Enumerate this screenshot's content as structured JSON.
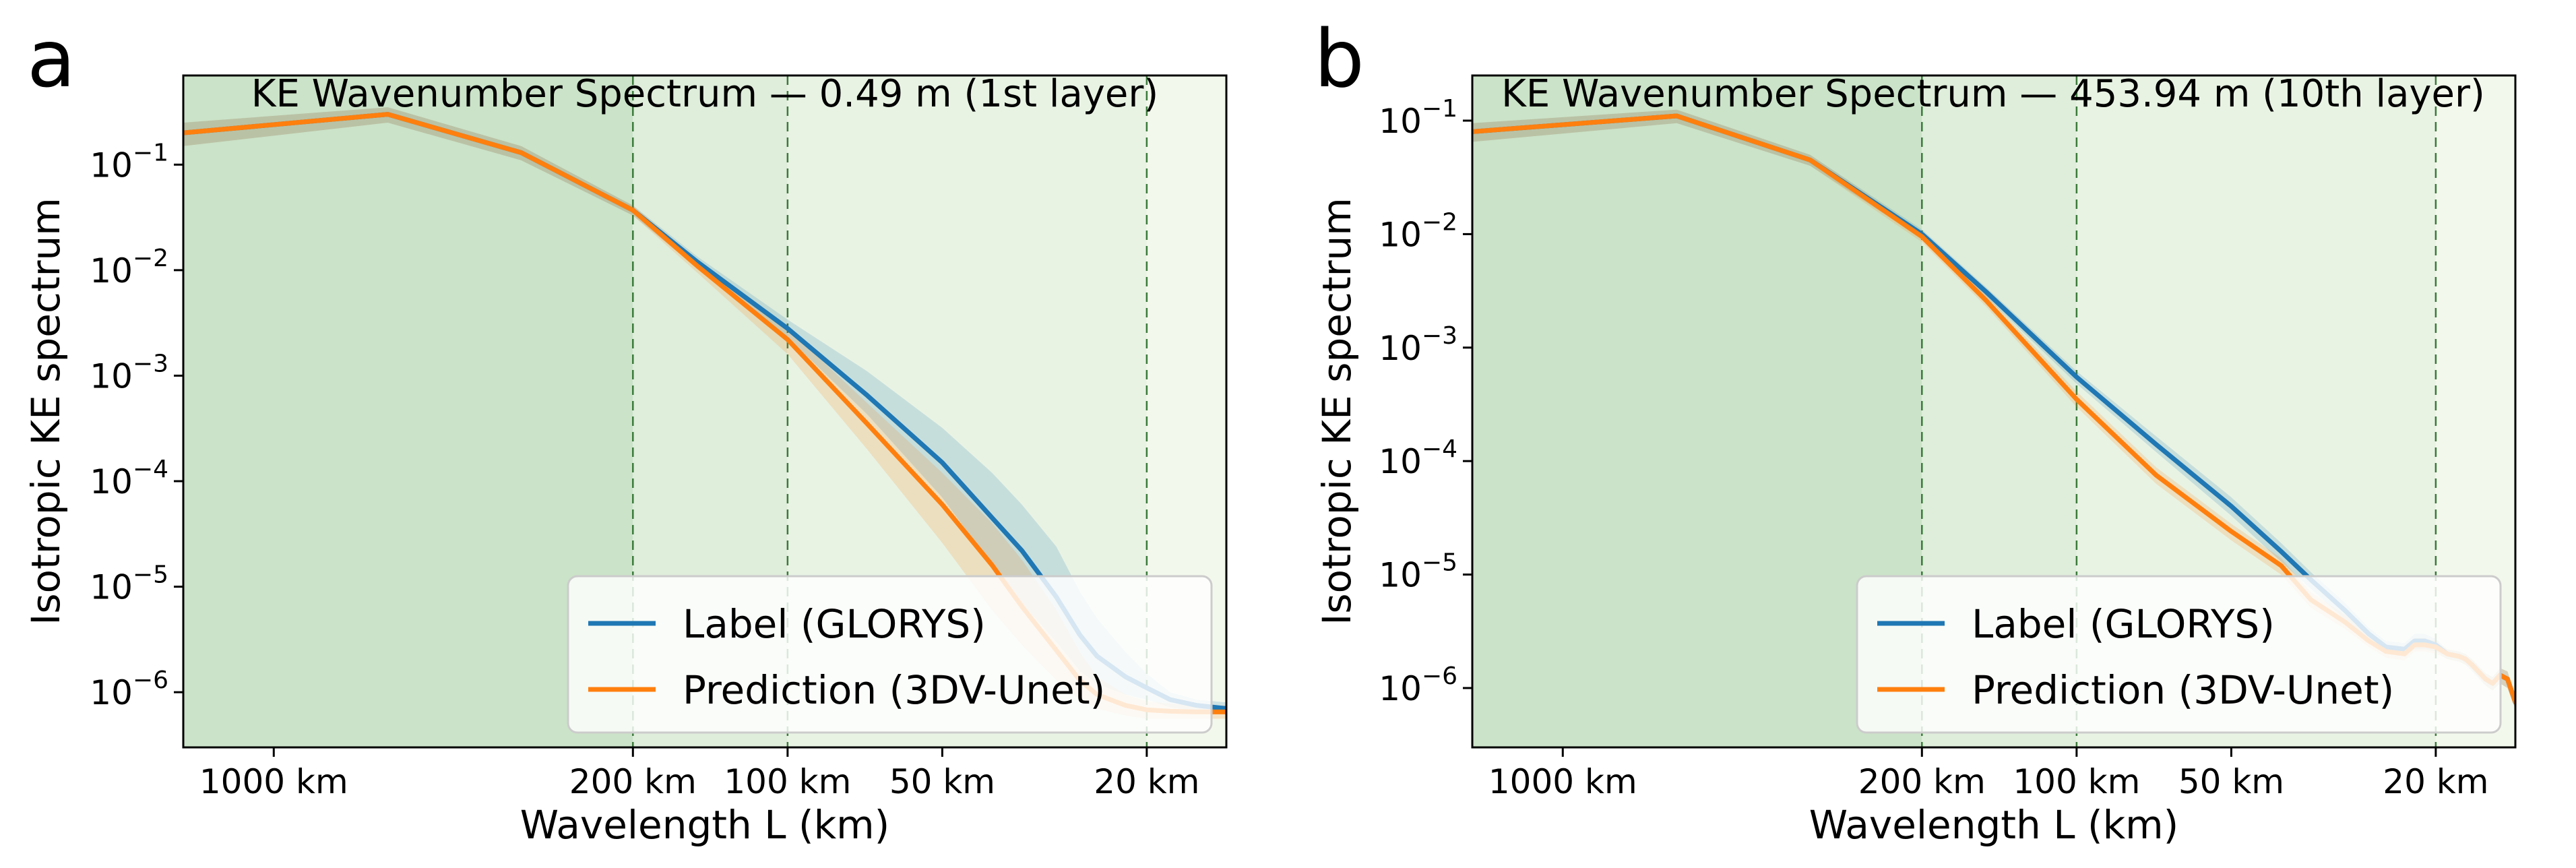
{
  "chart_data": [
    {
      "type": "line",
      "panel_label": "a",
      "title": "KE Wavenumber Spectrum — 0.49 m (1st layer)",
      "xlabel": "Wavelength L (km)",
      "ylabel": "Isotropic KE spectrum",
      "xscale": "log",
      "yscale": "log",
      "xlim": [
        1500,
        14
      ],
      "ylim": [
        3e-07,
        0.7
      ],
      "xticks": [
        {
          "value": 20,
          "label": "20 km"
        },
        {
          "value": 50,
          "label": "50 km"
        },
        {
          "value": 100,
          "label": "100 km"
        },
        {
          "value": 200,
          "label": "200 km"
        },
        {
          "value": 1000,
          "label": "1000 km"
        }
      ],
      "yticks": [
        {
          "value": 1e-06,
          "base": "10",
          "exp": "−6"
        },
        {
          "value": 1e-05,
          "base": "10",
          "exp": "−5"
        },
        {
          "value": 0.0001,
          "base": "10",
          "exp": "−4"
        },
        {
          "value": 0.001,
          "base": "10",
          "exp": "−3"
        },
        {
          "value": 0.01,
          "base": "10",
          "exp": "−2"
        },
        {
          "value": 0.1,
          "base": "10",
          "exp": "−1"
        }
      ],
      "shaded_regions": [
        {
          "from": 14,
          "to": 20,
          "color": "#f3f8ec"
        },
        {
          "from": 20,
          "to": 100,
          "color": "#e9f3e4"
        },
        {
          "from": 100,
          "to": 200,
          "color": "#dfeddb"
        },
        {
          "from": 200,
          "to": 1500,
          "color": "#cbe3c8"
        }
      ],
      "vlines": [
        20,
        100,
        200
      ],
      "legend": {
        "location": "lower-right",
        "entries": [
          "Label (GLORYS)",
          "Prediction (3DV-Unet)"
        ]
      },
      "series": [
        {
          "name": "Label (GLORYS)",
          "color": "#1f77b4",
          "x": [
            1500,
            600,
            330,
            200,
            150,
            100,
            70,
            50,
            40,
            35,
            30,
            27,
            25,
            22,
            20,
            18,
            16,
            14
          ],
          "y": [
            0.2,
            0.3,
            0.13,
            0.037,
            0.012,
            0.0028,
            0.00065,
            0.00015,
            4.5e-05,
            2.2e-05,
            8e-06,
            3.5e-06,
            2.2e-06,
            1.4e-06,
            1.1e-06,
            8.5e-07,
            7.5e-07,
            7e-07
          ],
          "band_lower": [
            0.15,
            0.25,
            0.11,
            0.033,
            0.0105,
            0.0023,
            0.00043,
            7e-05,
            1.6e-05,
            7e-06,
            3e-06,
            1.6e-06,
            1.2e-06,
            9.5e-07,
            8.5e-07,
            7.2e-07,
            6.6e-07,
            6.2e-07
          ],
          "band_upper": [
            0.25,
            0.35,
            0.15,
            0.041,
            0.0135,
            0.0034,
            0.0011,
            0.00032,
            0.00012,
            6e-05,
            2.4e-05,
            9e-06,
            5e-06,
            2.4e-06,
            1.5e-06,
            1e-06,
            8.5e-07,
            8e-07
          ]
        },
        {
          "name": "Prediction (3DV-Unet)",
          "color": "#ff7f0e",
          "x": [
            1500,
            600,
            330,
            200,
            150,
            100,
            70,
            50,
            40,
            35,
            30,
            27,
            25,
            22,
            20,
            18,
            16,
            14
          ],
          "y": [
            0.2,
            0.3,
            0.13,
            0.037,
            0.011,
            0.0022,
            0.00035,
            6e-05,
            1.6e-05,
            6.5e-06,
            2.5e-06,
            1.3e-06,
            9.5e-07,
            7.5e-07,
            6.8e-07,
            6.6e-07,
            6.5e-07,
            6.5e-07
          ],
          "band_lower": [
            0.15,
            0.25,
            0.11,
            0.033,
            0.0095,
            0.0016,
            0.0002,
            2.6e-05,
            6e-06,
            2.8e-06,
            1.3e-06,
            8.5e-07,
            7e-07,
            6e-07,
            5.6e-07,
            5.6e-07,
            5.6e-07,
            5.6e-07
          ],
          "band_upper": [
            0.25,
            0.35,
            0.15,
            0.041,
            0.0125,
            0.0028,
            0.00055,
            0.00012,
            4e-05,
            1.8e-05,
            6e-06,
            2.4e-06,
            1.4e-06,
            9.5e-07,
            8.2e-07,
            7.8e-07,
            7.5e-07,
            7.5e-07
          ]
        }
      ]
    },
    {
      "type": "line",
      "panel_label": "b",
      "title": "KE Wavenumber Spectrum — 453.94 m (10th layer)",
      "xlabel": "Wavelength L (km)",
      "ylabel": "Isotropic KE spectrum",
      "xscale": "log",
      "yscale": "log",
      "xlim": [
        1500,
        14
      ],
      "ylim": [
        3e-07,
        0.25
      ],
      "xticks": [
        {
          "value": 20,
          "label": "20 km"
        },
        {
          "value": 50,
          "label": "50 km"
        },
        {
          "value": 100,
          "label": "100 km"
        },
        {
          "value": 200,
          "label": "200 km"
        },
        {
          "value": 1000,
          "label": "1000 km"
        }
      ],
      "yticks": [
        {
          "value": 1e-06,
          "base": "10",
          "exp": "−6"
        },
        {
          "value": 1e-05,
          "base": "10",
          "exp": "−5"
        },
        {
          "value": 0.0001,
          "base": "10",
          "exp": "−4"
        },
        {
          "value": 0.001,
          "base": "10",
          "exp": "−3"
        },
        {
          "value": 0.01,
          "base": "10",
          "exp": "−2"
        },
        {
          "value": 0.1,
          "base": "10",
          "exp": "−1"
        }
      ],
      "shaded_regions": [
        {
          "from": 14,
          "to": 20,
          "color": "#f3f8ec"
        },
        {
          "from": 20,
          "to": 100,
          "color": "#e9f3e4"
        },
        {
          "from": 100,
          "to": 200,
          "color": "#dfeddb"
        },
        {
          "from": 200,
          "to": 1500,
          "color": "#cbe3c8"
        }
      ],
      "vlines": [
        20,
        100,
        200
      ],
      "legend": {
        "location": "lower-right",
        "entries": [
          "Label (GLORYS)",
          "Prediction (3DV-Unet)"
        ]
      },
      "series": [
        {
          "name": "Label (GLORYS)",
          "color": "#1f77b4",
          "x": [
            1500,
            600,
            330,
            200,
            150,
            100,
            70,
            50,
            40,
            35,
            30,
            27,
            25,
            23,
            22,
            21,
            20,
            19,
            18,
            17.5,
            17,
            16,
            15.5,
            15,
            14.5,
            14
          ],
          "y": [
            0.08,
            0.11,
            0.045,
            0.01,
            0.0031,
            0.00055,
            0.00014,
            4e-05,
            1.6e-05,
            9e-06,
            4.8e-06,
            3e-06,
            2.3e-06,
            2.2e-06,
            2.6e-06,
            2.6e-06,
            2.4e-06,
            2e-06,
            1.9e-06,
            1.8e-06,
            1.6e-06,
            1.2e-06,
            1.1e-06,
            1.3e-06,
            1.2e-06,
            7.5e-07
          ],
          "band_lower": [
            0.065,
            0.095,
            0.04,
            0.0092,
            0.0028,
            0.00048,
            0.00012,
            3.3e-05,
            1.3e-05,
            7.5e-06,
            4e-06,
            2.6e-06,
            2e-06,
            1.9e-06,
            2.2e-06,
            2.2e-06,
            2.1e-06,
            1.8e-06,
            1.7e-06,
            1.6e-06,
            1.4e-06,
            1.05e-06,
            9.5e-07,
            1.1e-06,
            1e-06,
            6.5e-07
          ],
          "band_upper": [
            0.095,
            0.125,
            0.05,
            0.011,
            0.0034,
            0.00062,
            0.000165,
            4.8e-05,
            1.9e-05,
            1.05e-05,
            5.6e-06,
            3.4e-06,
            2.6e-06,
            2.5e-06,
            3e-06,
            3e-06,
            2.7e-06,
            2.2e-06,
            2.1e-06,
            2e-06,
            1.8e-06,
            1.35e-06,
            1.25e-06,
            1.5e-06,
            1.4e-06,
            8.6e-07
          ]
        },
        {
          "name": "Prediction (3DV-Unet)",
          "color": "#ff7f0e",
          "x": [
            1500,
            600,
            330,
            200,
            150,
            100,
            70,
            50,
            40,
            35,
            30,
            27,
            25,
            23,
            22,
            21,
            20,
            19,
            18,
            17.5,
            17,
            16,
            15.5,
            15,
            14.5,
            14
          ],
          "y": [
            0.08,
            0.11,
            0.045,
            0.0095,
            0.0026,
            0.00035,
            7.5e-05,
            2.4e-05,
            1.2e-05,
            6e-06,
            3.8e-06,
            2.6e-06,
            2.1e-06,
            2e-06,
            2.4e-06,
            2.4e-06,
            2.3e-06,
            2e-06,
            1.9e-06,
            1.8e-06,
            1.6e-06,
            1.2e-06,
            1.1e-06,
            1.3e-06,
            1.2e-06,
            7.5e-07
          ],
          "band_lower": [
            0.065,
            0.095,
            0.04,
            0.0085,
            0.0023,
            0.0003,
            6.3e-05,
            2e-05,
            1e-05,
            5.1e-06,
            3.3e-06,
            2.3e-06,
            1.85e-06,
            1.75e-06,
            2.1e-06,
            2.1e-06,
            2e-06,
            1.8e-06,
            1.7e-06,
            1.6e-06,
            1.45e-06,
            1.05e-06,
            9.5e-07,
            1.1e-06,
            1e-06,
            6.5e-07
          ],
          "band_upper": [
            0.095,
            0.125,
            0.05,
            0.0105,
            0.0029,
            0.00041,
            8.8e-05,
            2.8e-05,
            1.4e-05,
            7e-06,
            4.4e-06,
            3e-06,
            2.4e-06,
            2.3e-06,
            2.75e-06,
            2.75e-06,
            2.6e-06,
            2.2e-06,
            2.1e-06,
            2e-06,
            1.8e-06,
            1.35e-06,
            1.25e-06,
            1.5e-06,
            1.4e-06,
            8.6e-07
          ]
        }
      ]
    }
  ]
}
